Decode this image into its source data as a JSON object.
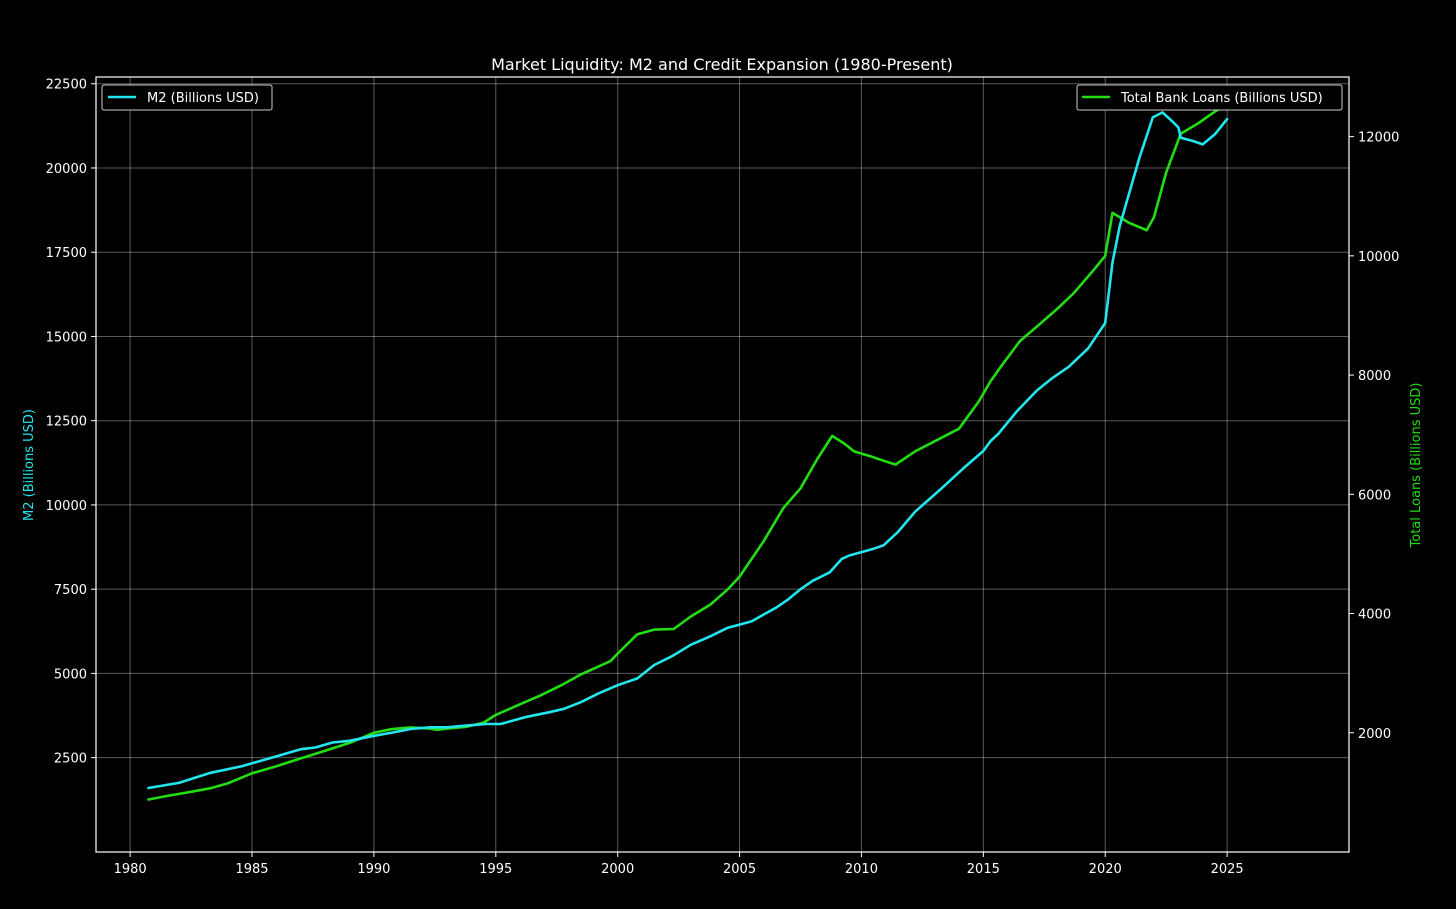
{
  "chart_data": {
    "type": "line",
    "title": "Market Liquidity: M2 and Credit Expansion (1980-Present)",
    "xlim": [
      1978.6,
      2030.0
    ],
    "x_ticks": [
      1980,
      1985,
      1990,
      1995,
      2000,
      2005,
      2010,
      2015,
      2020,
      2025
    ],
    "grid": true,
    "axes": {
      "left": {
        "label": "M2 (Billions USD)",
        "ylim": [
          -300,
          22700
        ],
        "ticks": [
          2500,
          5000,
          7500,
          10000,
          12500,
          15000,
          17500,
          20000,
          22500
        ],
        "color": "#22e6ee"
      },
      "right": {
        "label": "Total Loans (Billions USD)",
        "ylim": [
          0,
          13000
        ],
        "ticks": [
          2000,
          4000,
          6000,
          8000,
          10000,
          12000
        ],
        "color": "#22dd11"
      }
    },
    "legends": [
      {
        "placement": "upper-left",
        "entries": [
          "M2 (Billions USD)"
        ]
      },
      {
        "placement": "upper-right",
        "entries": [
          "Total Bank Loans (Billions USD)"
        ]
      }
    ],
    "series": [
      {
        "name": "M2 (Billions USD)",
        "axis": "left",
        "color": "#22e6ee",
        "x": [
          1980.75,
          1982.0,
          1983.3,
          1984.6,
          1985.8,
          1987.0,
          1987.6,
          1988.3,
          1989.0,
          1990.0,
          1990.8,
          1991.5,
          1992.3,
          1993.0,
          1993.8,
          1994.6,
          1995.2,
          1996.2,
          1997.2,
          1997.8,
          1998.5,
          1999.2,
          2000.0,
          2000.8,
          2001.5,
          2002.2,
          2003.0,
          2003.8,
          2004.5,
          2005.0,
          2005.5,
          2006.0,
          2006.5,
          2007.0,
          2007.5,
          2008.0,
          2008.7,
          2009.2,
          2009.5,
          2010.0,
          2010.5,
          2010.9,
          2011.5,
          2012.2,
          2013.3,
          2014.2,
          2015.0,
          2015.3,
          2015.6,
          2016.4,
          2017.2,
          2017.8,
          2018.5,
          2019.3,
          2020.0,
          2020.3,
          2020.6,
          2021.4,
          2021.95,
          2022.35,
          2022.8,
          2023.0,
          2023.1,
          2023.6,
          2024.0,
          2024.5,
          2025.0
        ],
        "values": [
          1600,
          1750,
          2050,
          2250,
          2500,
          2750,
          2800,
          2950,
          3000,
          3150,
          3250,
          3350,
          3400,
          3400,
          3450,
          3500,
          3500,
          3700,
          3850,
          3950,
          4150,
          4400,
          4650,
          4850,
          5250,
          5500,
          5850,
          6100,
          6350,
          6450,
          6550,
          6750,
          6950,
          7200,
          7500,
          7750,
          8000,
          8400,
          8500,
          8600,
          8700,
          8800,
          9200,
          9800,
          10500,
          11100,
          11600,
          11900,
          12100,
          12800,
          13400,
          13750,
          14100,
          14650,
          15400,
          17200,
          18300,
          20300,
          21500,
          21650,
          21350,
          21200,
          20900,
          20800,
          20700,
          21000,
          21450
        ]
      },
      {
        "name": "Total Bank Loans (Billions USD)",
        "axis": "right",
        "color": "#22dd11",
        "x": [
          1980.75,
          1981.5,
          1982.5,
          1983.3,
          1984.0,
          1985.0,
          1986.0,
          1987.0,
          1988.0,
          1989.0,
          1990.0,
          1990.7,
          1991.5,
          1992.3,
          1992.6,
          1993.0,
          1993.8,
          1994.5,
          1995.0,
          1996.0,
          1996.8,
          1997.7,
          1998.5,
          1999.7,
          2000.0,
          2000.8,
          2001.5,
          2002.3,
          2003.0,
          2003.8,
          2004.5,
          2005.0,
          2006.0,
          2006.8,
          2007.5,
          2008.2,
          2008.8,
          2009.3,
          2009.7,
          2010.5,
          2011.0,
          2011.4,
          2012.2,
          2013.0,
          2014.0,
          2014.8,
          2015.3,
          2015.7,
          2016.5,
          2017.3,
          2018.0,
          2018.7,
          2019.5,
          2020.0,
          2020.3,
          2021.0,
          2021.7,
          2022.0,
          2022.5,
          2023.1,
          2023.8,
          2024.5,
          2025.0
        ],
        "values": [
          880,
          940,
          1010,
          1070,
          1150,
          1320,
          1440,
          1570,
          1700,
          1830,
          2000,
          2060,
          2090,
          2070,
          2050,
          2070,
          2100,
          2170,
          2300,
          2480,
          2620,
          2800,
          2980,
          3200,
          3330,
          3650,
          3730,
          3740,
          3950,
          4150,
          4400,
          4620,
          5220,
          5770,
          6100,
          6600,
          6980,
          6850,
          6720,
          6620,
          6550,
          6500,
          6720,
          6890,
          7100,
          7550,
          7900,
          8130,
          8570,
          8850,
          9100,
          9370,
          9750,
          10000,
          10720,
          10550,
          10430,
          10650,
          11400,
          12050,
          12220,
          12420,
          12550
        ]
      }
    ]
  }
}
